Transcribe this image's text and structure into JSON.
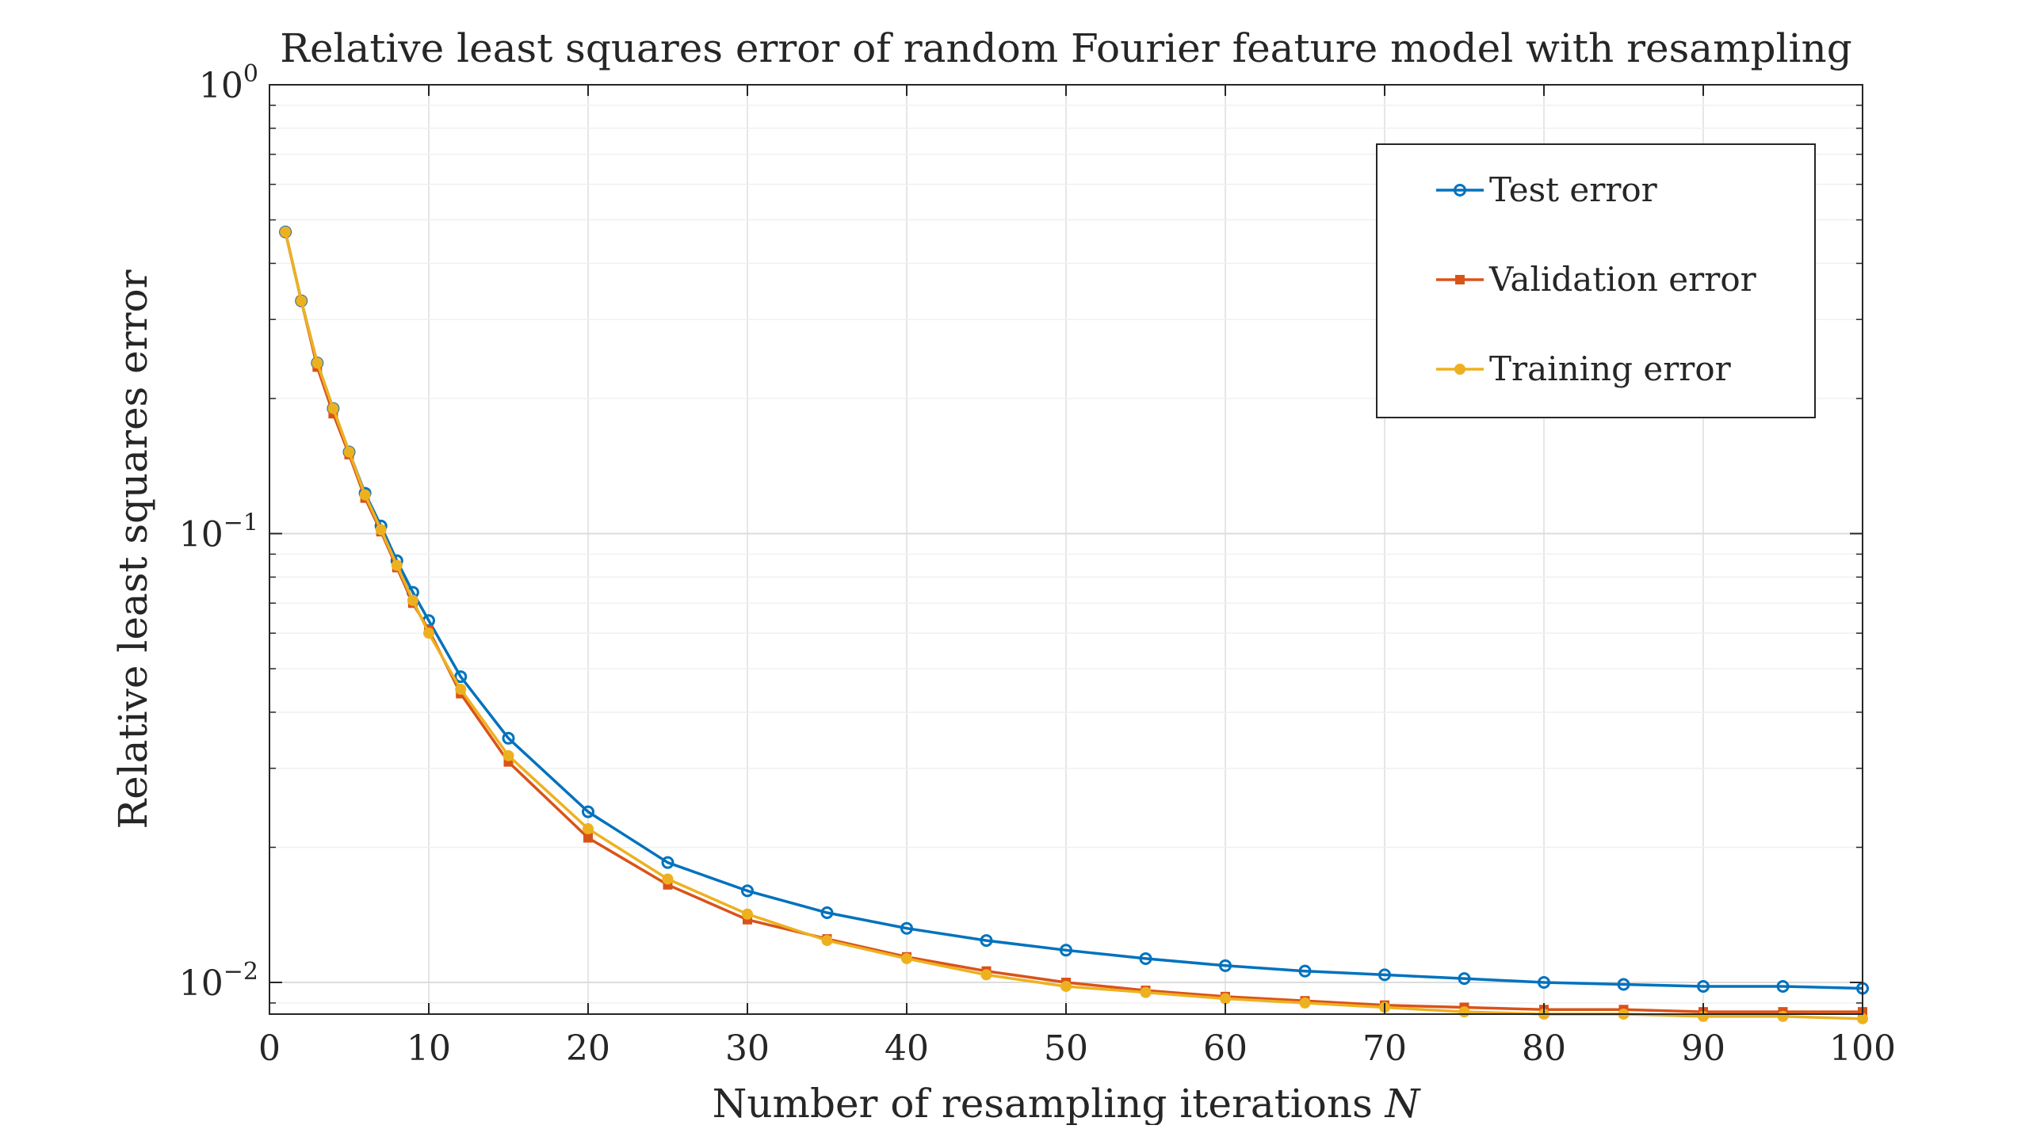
{
  "chart_data": {
    "type": "line",
    "title": "Relative least squares error of random Fourier feature model with resampling",
    "xlabel": "Number of resampling iterations ",
    "xlabel_var": "N",
    "ylabel": "Relative least squares error",
    "xlim": [
      0,
      100
    ],
    "ylim": [
      0.0085,
      1
    ],
    "yscale": "log",
    "grid": true,
    "legend_position": "top-right",
    "x_ticks": [
      "0",
      "10",
      "20",
      "30",
      "40",
      "50",
      "60",
      "70",
      "80",
      "90",
      "100"
    ],
    "y_ticks": [
      {
        "base": "10",
        "exp": "0",
        "value": 1
      },
      {
        "base": "10",
        "exp": "−1",
        "value": 0.1
      },
      {
        "base": "10",
        "exp": "−2",
        "value": 0.01
      }
    ],
    "x": [
      1,
      2,
      3,
      4,
      5,
      6,
      7,
      8,
      9,
      10,
      12,
      15,
      20,
      25,
      30,
      35,
      40,
      45,
      50,
      55,
      60,
      65,
      70,
      75,
      80,
      85,
      90,
      95,
      100
    ],
    "series": [
      {
        "name": "Test error",
        "color": "#0072BD",
        "marker": "circle",
        "values": [
          0.47,
          0.33,
          0.24,
          0.19,
          0.152,
          0.123,
          0.104,
          0.087,
          0.074,
          0.064,
          0.048,
          0.035,
          0.024,
          0.0185,
          0.016,
          0.0143,
          0.0132,
          0.0124,
          0.0118,
          0.0113,
          0.0109,
          0.0106,
          0.0104,
          0.0102,
          0.01,
          0.0099,
          0.0098,
          0.0098,
          0.0097
        ]
      },
      {
        "name": "Validation error",
        "color": "#D95319",
        "marker": "square",
        "values": [
          0.47,
          0.33,
          0.235,
          0.185,
          0.15,
          0.12,
          0.101,
          0.084,
          0.07,
          0.061,
          0.044,
          0.031,
          0.021,
          0.0165,
          0.0138,
          0.0125,
          0.0114,
          0.0106,
          0.01,
          0.0096,
          0.0093,
          0.0091,
          0.0089,
          0.0088,
          0.0087,
          0.0087,
          0.0086,
          0.0086,
          0.0086
        ]
      },
      {
        "name": "Training error",
        "color": "#EDB120",
        "marker": "dot",
        "values": [
          0.47,
          0.33,
          0.24,
          0.19,
          0.152,
          0.122,
          0.102,
          0.085,
          0.071,
          0.06,
          0.045,
          0.032,
          0.022,
          0.017,
          0.0142,
          0.0124,
          0.0113,
          0.0104,
          0.0098,
          0.0095,
          0.0092,
          0.009,
          0.0088,
          0.0086,
          0.0085,
          0.0085,
          0.0084,
          0.0084,
          0.0083
        ]
      }
    ]
  }
}
